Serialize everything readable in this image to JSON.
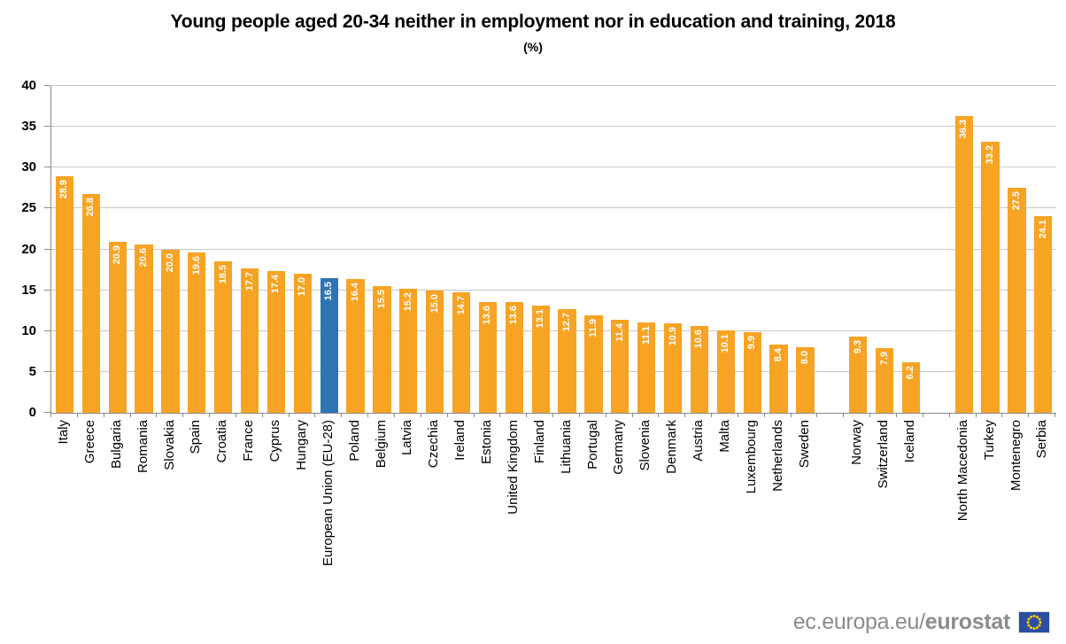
{
  "chart_data": {
    "type": "bar",
    "title": "Young people aged 20-34 neither in employment nor in education and training, 2018",
    "subtitle": "(%)",
    "xlabel": "",
    "ylabel": "",
    "ylim": [
      0,
      40
    ],
    "ytick_step": 5,
    "grid": true,
    "legend": "none",
    "bar_color": "#F7A324",
    "highlight_color": "#2E74B5",
    "value_label_color": "#FFFFFF",
    "bars": [
      {
        "label": "Italy",
        "value": 28.9
      },
      {
        "label": "Greece",
        "value": 26.8
      },
      {
        "label": "Bulgaria",
        "value": 20.9
      },
      {
        "label": "Romania",
        "value": 20.6
      },
      {
        "label": "Slovakia",
        "value": 20.0
      },
      {
        "label": "Spain",
        "value": 19.6
      },
      {
        "label": "Croatia",
        "value": 18.5
      },
      {
        "label": "France",
        "value": 17.7
      },
      {
        "label": "Cyprus",
        "value": 17.4
      },
      {
        "label": "Hungary",
        "value": 17.0
      },
      {
        "label": "European Union (EU-28)",
        "value": 16.5,
        "highlight": true
      },
      {
        "label": "Poland",
        "value": 16.4
      },
      {
        "label": "Belgium",
        "value": 15.5
      },
      {
        "label": "Latvia",
        "value": 15.2
      },
      {
        "label": "Czechia",
        "value": 15.0
      },
      {
        "label": "Ireland",
        "value": 14.7
      },
      {
        "label": "Estonia",
        "value": 13.6
      },
      {
        "label": "United Kingdom",
        "value": 13.6
      },
      {
        "label": "Finland",
        "value": 13.1
      },
      {
        "label": "Lithuania",
        "value": 12.7
      },
      {
        "label": "Portugal",
        "value": 11.9
      },
      {
        "label": "Germany",
        "value": 11.4
      },
      {
        "label": "Slovenia",
        "value": 11.1
      },
      {
        "label": "Denmark",
        "value": 10.9
      },
      {
        "label": "Austria",
        "value": 10.6
      },
      {
        "label": "Malta",
        "value": 10.1
      },
      {
        "label": "Luxembourg",
        "value": 9.9
      },
      {
        "label": "Netherlands",
        "value": 8.4
      },
      {
        "label": "Sweden",
        "value": 8.0
      },
      {
        "label": "",
        "value": null,
        "spacer": true
      },
      {
        "label": "Norway",
        "value": 9.3
      },
      {
        "label": "Switzerland",
        "value": 7.9
      },
      {
        "label": "Iceland",
        "value": 6.2
      },
      {
        "label": "",
        "value": null,
        "spacer": true
      },
      {
        "label": "North Macedonia",
        "value": 36.3
      },
      {
        "label": "Turkey",
        "value": 33.2
      },
      {
        "label": "Montenegro",
        "value": 27.5
      },
      {
        "label": "Serbia",
        "value": 24.1
      }
    ]
  },
  "footer": {
    "url_regular": "ec.europa.eu/",
    "url_bold": "eurostat"
  },
  "icons": {
    "eu_flag": "eu-flag-icon"
  },
  "colors": {
    "bar": "#F7A324",
    "highlight": "#2E74B5",
    "grid": "#C8C8C8",
    "axis": "#8A8A8A",
    "footer_text": "#8C8C8C",
    "flag_blue": "#2B4EA2",
    "flag_stars": "#FFCC00"
  }
}
